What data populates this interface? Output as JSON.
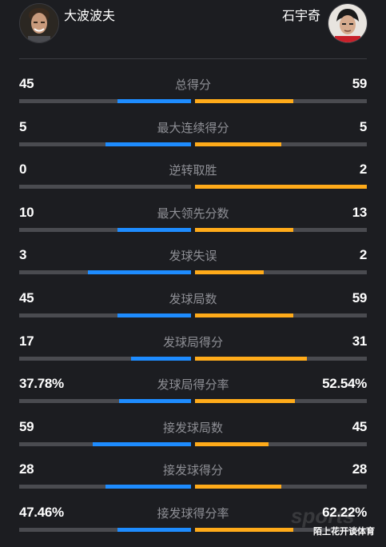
{
  "header": {
    "left_player": "大波波夫",
    "right_player": "石宇奇"
  },
  "colors": {
    "left_bar": "#1e8cff",
    "right_bar": "#ffab1a",
    "track": "#4a4b50",
    "background": "#1c1d21"
  },
  "stats": [
    {
      "label": "总得分",
      "left": "45",
      "right": "59",
      "left_share": 0.43,
      "right_share": 0.57
    },
    {
      "label": "最大连续得分",
      "left": "5",
      "right": "5",
      "left_share": 0.5,
      "right_share": 0.5
    },
    {
      "label": "逆转取胜",
      "left": "0",
      "right": "2",
      "left_share": 0.0,
      "right_share": 1.0
    },
    {
      "label": "最大领先分数",
      "left": "10",
      "right": "13",
      "left_share": 0.43,
      "right_share": 0.57
    },
    {
      "label": "发球失误",
      "left": "3",
      "right": "2",
      "left_share": 0.6,
      "right_share": 0.4
    },
    {
      "label": "发球局数",
      "left": "45",
      "right": "59",
      "left_share": 0.43,
      "right_share": 0.57
    },
    {
      "label": "发球局得分",
      "left": "17",
      "right": "31",
      "left_share": 0.35,
      "right_share": 0.65
    },
    {
      "label": "发球局得分率",
      "left": "37.78%",
      "right": "52.54%",
      "left_share": 0.42,
      "right_share": 0.58
    },
    {
      "label": "接发球局数",
      "left": "59",
      "right": "45",
      "left_share": 0.57,
      "right_share": 0.43
    },
    {
      "label": "接发球得分",
      "left": "28",
      "right": "28",
      "left_share": 0.5,
      "right_share": 0.5
    },
    {
      "label": "接发球得分率",
      "left": "47.46%",
      "right": "62.22%",
      "left_share": 0.43,
      "right_share": 0.57
    }
  ],
  "watermark": {
    "brand": "sports",
    "source": "陌上花开谈体育"
  }
}
